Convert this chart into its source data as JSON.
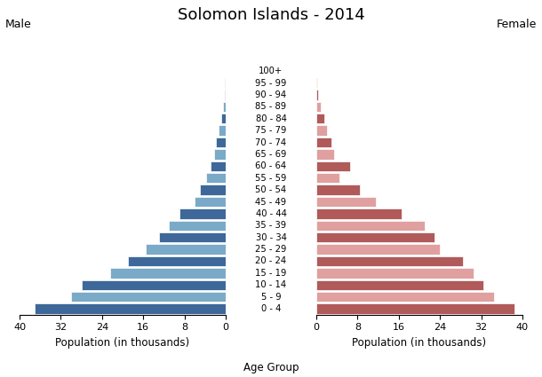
{
  "title": "Solomon Islands - 2014",
  "age_groups_bottom_to_top": [
    "0 - 4",
    "5 - 9",
    "10 - 14",
    "15 - 19",
    "20 - 24",
    "25 - 29",
    "30 - 34",
    "35 - 39",
    "40 - 44",
    "45 - 49",
    "50 - 54",
    "55 - 59",
    "60 - 64",
    "65 - 69",
    "70 - 74",
    "75 - 79",
    "80 - 84",
    "85 - 89",
    "90 - 94",
    "95 - 99",
    "100+"
  ],
  "male_vals": [
    37.0,
    30.0,
    28.0,
    22.5,
    19.0,
    15.5,
    13.0,
    11.0,
    9.0,
    6.0,
    5.0,
    3.8,
    3.0,
    2.3,
    1.9,
    1.3,
    0.8,
    0.5,
    0.2,
    0.1,
    0.05
  ],
  "female_vals": [
    38.5,
    34.5,
    32.5,
    30.5,
    28.5,
    24.0,
    23.0,
    21.0,
    16.5,
    11.5,
    8.5,
    4.5,
    6.5,
    3.5,
    3.0,
    2.0,
    1.5,
    0.8,
    0.3,
    0.1,
    0.05
  ],
  "male_dark": "#3d6899",
  "male_light": "#7aaac8",
  "female_dark": "#b05a5a",
  "female_light": "#e0a0a0",
  "bg_color": "#ffffff",
  "xlim": 40,
  "bar_height": 0.85,
  "ylabel_left": "Male",
  "ylabel_right": "Female",
  "xlabel_left": "Population (in thousands)",
  "xlabel_center": "Age Group",
  "xlabel_right": "Population (in thousands)"
}
